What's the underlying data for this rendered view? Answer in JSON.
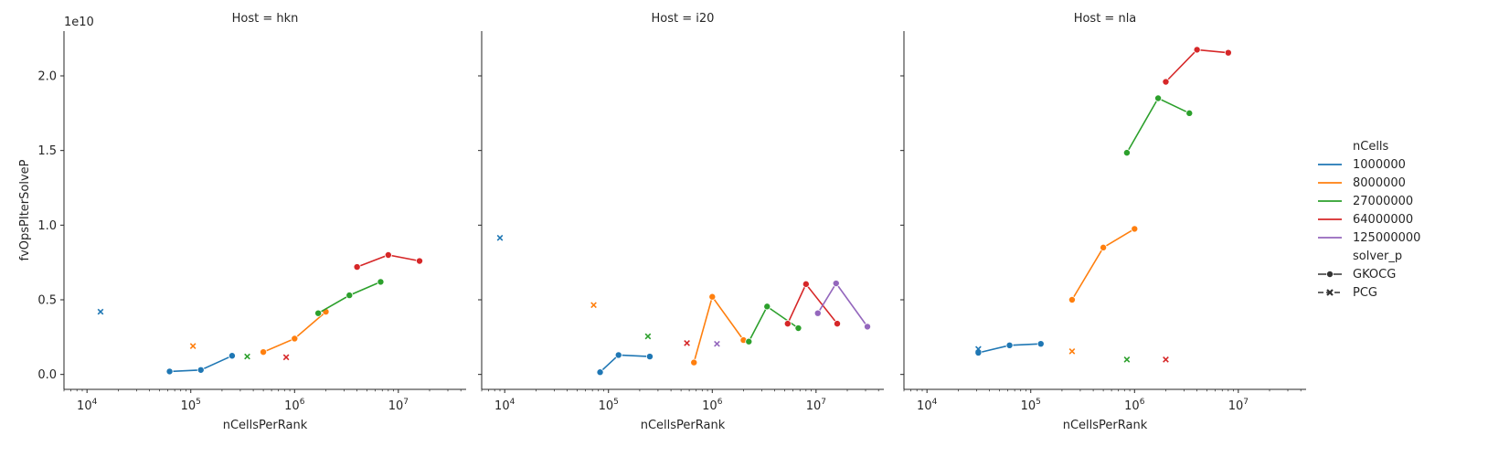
{
  "chart_data": {
    "type": "line",
    "facet_variable": "Host",
    "y_label": "fvOpsPIterSolveP",
    "x_label": "nCellsPerRank",
    "x_scale": "log",
    "xlim": [
      6000,
      45000000
    ],
    "ylim": [
      -1000000000.0,
      23000000000.0
    ],
    "y_offset_text": "1e10",
    "y_ticks": [
      0,
      5000000000.0,
      10000000000.0,
      15000000000.0,
      20000000000.0
    ],
    "y_tick_labels": [
      "0.0",
      "0.5",
      "1.0",
      "1.5",
      "2.0"
    ],
    "x_ticks": [
      10000,
      100000,
      1000000,
      10000000
    ],
    "x_tick_labels": [
      [
        "10",
        "4"
      ],
      [
        "10",
        "5"
      ],
      [
        "10",
        "6"
      ],
      [
        "10",
        "7"
      ]
    ],
    "grid": false,
    "legend": {
      "placement": "right",
      "hue_title": "nCells",
      "hue_items": [
        {
          "label": "1000000",
          "color": "#1f77b4"
        },
        {
          "label": "8000000",
          "color": "#ff7f0e"
        },
        {
          "label": "27000000",
          "color": "#2ca02c"
        },
        {
          "label": "64000000",
          "color": "#d62728"
        },
        {
          "label": "125000000",
          "color": "#9467bd"
        }
      ],
      "style_title": "solver_p",
      "style_items": [
        {
          "label": "GKOCG",
          "marker": "circle",
          "line": true
        },
        {
          "label": "PCG",
          "marker": "x",
          "line": false
        }
      ]
    },
    "panels": [
      {
        "title": "Host = hkn",
        "series": [
          {
            "nCells": "1000000",
            "solver": "GKOCG",
            "color": "#1f77b4",
            "x": [
              62500,
              125000,
              250000
            ],
            "y": [
              200000000.0,
              300000000.0,
              1250000000.0
            ]
          },
          {
            "nCells": "8000000",
            "solver": "GKOCG",
            "color": "#ff7f0e",
            "x": [
              500000,
              1000000,
              2000000
            ],
            "y": [
              1500000000.0,
              2400000000.0,
              4200000000.0
            ]
          },
          {
            "nCells": "27000000",
            "solver": "GKOCG",
            "color": "#2ca02c",
            "x": [
              1690000,
              3375000,
              6750000
            ],
            "y": [
              4100000000.0,
              5300000000.0,
              6200000000.0
            ]
          },
          {
            "nCells": "64000000",
            "solver": "GKOCG",
            "color": "#d62728",
            "x": [
              4000000,
              8000000,
              16000000
            ],
            "y": [
              7200000000.0,
              8000000000.0,
              7600000000.0
            ]
          },
          {
            "nCells": "1000000",
            "solver": "PCG",
            "color": "#1f77b4",
            "x": [
              13500
            ],
            "y": [
              4200000000.0
            ]
          },
          {
            "nCells": "8000000",
            "solver": "PCG",
            "color": "#ff7f0e",
            "x": [
              105000
            ],
            "y": [
              1900000000.0
            ]
          },
          {
            "nCells": "27000000",
            "solver": "PCG",
            "color": "#2ca02c",
            "x": [
              350000
            ],
            "y": [
              1200000000.0
            ]
          },
          {
            "nCells": "64000000",
            "solver": "PCG",
            "color": "#d62728",
            "x": [
              830000
            ],
            "y": [
              1150000000.0
            ]
          }
        ]
      },
      {
        "title": "Host = i20",
        "series": [
          {
            "nCells": "1000000",
            "solver": "GKOCG",
            "color": "#1f77b4",
            "x": [
              83000,
              125000,
              250000
            ],
            "y": [
              150000000.0,
              1300000000.0,
              1200000000.0
            ]
          },
          {
            "nCells": "8000000",
            "solver": "GKOCG",
            "color": "#ff7f0e",
            "x": [
              666000,
              1000000,
              2000000
            ],
            "y": [
              800000000.0,
              5200000000.0,
              2300000000.0
            ]
          },
          {
            "nCells": "27000000",
            "solver": "GKOCG",
            "color": "#2ca02c",
            "x": [
              2250000,
              3375000,
              6750000
            ],
            "y": [
              2200000000.0,
              4550000000.0,
              3100000000.0
            ]
          },
          {
            "nCells": "64000000",
            "solver": "GKOCG",
            "color": "#d62728",
            "x": [
              5330000,
              8000000,
              16000000
            ],
            "y": [
              3400000000.0,
              6050000000.0,
              3400000000.0
            ]
          },
          {
            "nCells": "125000000",
            "solver": "GKOCG",
            "color": "#9467bd",
            "x": [
              10400000,
              15600000,
              31250000
            ],
            "y": [
              4100000000.0,
              6100000000.0,
              3200000000.0
            ]
          },
          {
            "nCells": "1000000",
            "solver": "PCG",
            "color": "#1f77b4",
            "x": [
              9000
            ],
            "y": [
              9150000000.0
            ]
          },
          {
            "nCells": "8000000",
            "solver": "PCG",
            "color": "#ff7f0e",
            "x": [
              72000
            ],
            "y": [
              4650000000.0
            ]
          },
          {
            "nCells": "27000000",
            "solver": "PCG",
            "color": "#2ca02c",
            "x": [
              240000
            ],
            "y": [
              2550000000.0
            ]
          },
          {
            "nCells": "64000000",
            "solver": "PCG",
            "color": "#d62728",
            "x": [
              570000
            ],
            "y": [
              2100000000.0
            ]
          },
          {
            "nCells": "125000000",
            "solver": "PCG",
            "color": "#9467bd",
            "x": [
              1110000
            ],
            "y": [
              2050000000.0
            ]
          }
        ]
      },
      {
        "title": "Host = nla",
        "series": [
          {
            "nCells": "1000000",
            "solver": "GKOCG",
            "color": "#1f77b4",
            "x": [
              31250,
              62500,
              125000
            ],
            "y": [
              1450000000.0,
              1950000000.0,
              2050000000.0
            ]
          },
          {
            "nCells": "8000000",
            "solver": "GKOCG",
            "color": "#ff7f0e",
            "x": [
              250000,
              500000,
              1000000
            ],
            "y": [
              5000000000.0,
              8500000000.0,
              9750000000.0
            ]
          },
          {
            "nCells": "27000000",
            "solver": "GKOCG",
            "color": "#2ca02c",
            "x": [
              843750,
              1687500,
              3375000
            ],
            "y": [
              14850000000.0,
              18500000000.0,
              17500000000.0
            ]
          },
          {
            "nCells": "64000000",
            "solver": "GKOCG",
            "color": "#d62728",
            "x": [
              2000000,
              4000000,
              8000000
            ],
            "y": [
              19600000000.0,
              21750000000.0,
              21550000000.0
            ]
          },
          {
            "nCells": "1000000",
            "solver": "PCG",
            "color": "#1f77b4",
            "x": [
              31250
            ],
            "y": [
              1700000000.0
            ]
          },
          {
            "nCells": "8000000",
            "solver": "PCG",
            "color": "#ff7f0e",
            "x": [
              250000
            ],
            "y": [
              1550000000.0
            ]
          },
          {
            "nCells": "27000000",
            "solver": "PCG",
            "color": "#2ca02c",
            "x": [
              843750
            ],
            "y": [
              1000000000.0
            ]
          },
          {
            "nCells": "64000000",
            "solver": "PCG",
            "color": "#d62728",
            "x": [
              2000000
            ],
            "y": [
              1000000000.0
            ]
          }
        ]
      }
    ]
  }
}
